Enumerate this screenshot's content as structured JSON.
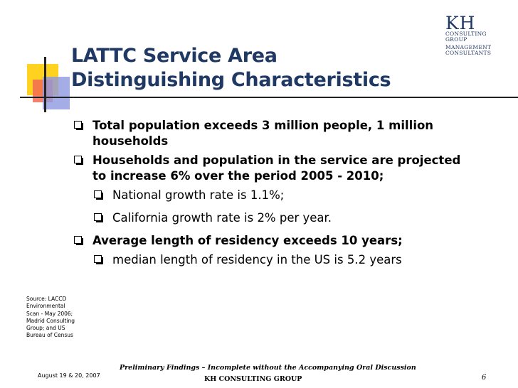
{
  "slide": {
    "title_line1": "LATTC Service Area",
    "title_line2": "Distinguishing Characteristics"
  },
  "logo": {
    "mark": "KH",
    "line1": "CONSULTING",
    "line2": "GROUP",
    "line3": "MANAGEMENT",
    "line4": "CONSULTANTS"
  },
  "bullets": [
    {
      "text": "Total population exceeds 3 million people, 1 million households"
    },
    {
      "text": "Households and population in the service are projected to increase 6% over the period 2005 - 2010;"
    },
    {
      "text": "National growth rate is 1.1%;"
    },
    {
      "text": "California growth rate is 2% per year."
    },
    {
      "text": "Average length of residency exceeds 10 years;"
    },
    {
      "text": "median length of residency in the US is 5.2 years"
    }
  ],
  "source_note": "Source: LACCD Environmental Scan - May 2006; Madrid Consulting Group; and US Bureau of Census",
  "footer": {
    "note": "Preliminary Findings – Incomplete without the Accompanying Oral Discussion",
    "date": "August 19 & 20, 2007",
    "company": "KH CONSULTING GROUP",
    "page": "6"
  },
  "colors": {
    "title": "#1f3864",
    "deco_yellow": "#ffd21f",
    "deco_red": "#f26b55",
    "deco_blue": "#8e98e0"
  }
}
